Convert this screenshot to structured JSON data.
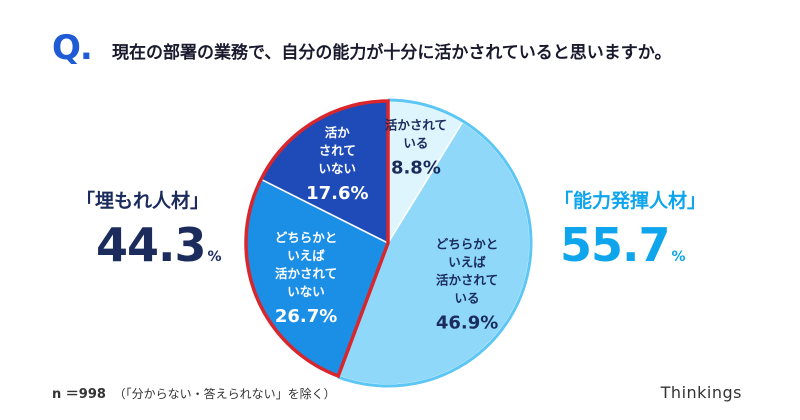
{
  "header": {
    "q_mark": "Q.",
    "question": "現在の部署の業務で、自分の能力が十分に活かされていると思いますか。"
  },
  "groups": {
    "left": {
      "label": "「埋もれ人材」",
      "value": "44.3",
      "unit": "%"
    },
    "right": {
      "label": "「能力発揮人材」",
      "value": "55.7",
      "unit": "%"
    }
  },
  "footnote": {
    "n": "n ＝998",
    "note": "（「分からない・答えられない」を除く）"
  },
  "brand": "Thinkings",
  "colors": {
    "navy": "#1f4bb8",
    "blue": "#1b8ee6",
    "light_blue": "#8fd8f9",
    "pale_blue": "#dff5fe",
    "outline_red": "#d9262c",
    "cyan_text": "#0ea5ec",
    "dark_text": "#1a2b5c"
  },
  "chart_data": {
    "type": "pie",
    "slices": [
      {
        "label": [
          "活かされて",
          "いる"
        ],
        "value": 8.8,
        "color": "#dff5fe",
        "text_color": "#1a2b5c",
        "group": "right"
      },
      {
        "label": [
          "どちらかと",
          "いえば",
          "活かされて",
          "いる"
        ],
        "value": 46.9,
        "color": "#8fd8f9",
        "text_color": "#1a2b5c",
        "group": "right"
      },
      {
        "label": [
          "どちらかと",
          "いえば",
          "活かされて",
          "いない"
        ],
        "value": 26.7,
        "color": "#1b8ee6",
        "text_color": "#ffffff",
        "group": "left"
      },
      {
        "label": [
          "活か",
          "されて",
          "いない"
        ],
        "value": 17.6,
        "color": "#1f4bb8",
        "text_color": "#ffffff",
        "group": "left"
      }
    ]
  }
}
